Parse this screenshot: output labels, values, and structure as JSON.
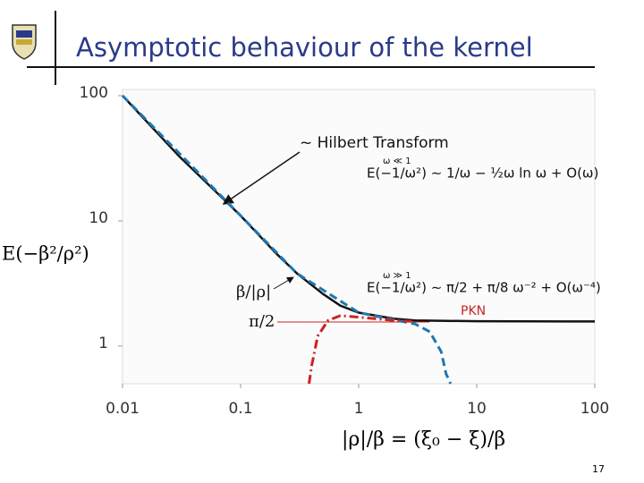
{
  "slide_title": "Asymptotic behaviour of the kernel",
  "page_number": "17",
  "chart_data": {
    "type": "line",
    "y_label": "E(−β²/ρ²)",
    "x_label": "|ρ|/β = (ξ₀ − ξ)/β",
    "xscale": "log",
    "yscale": "log",
    "xlim": [
      0.01,
      100
    ],
    "ylim": [
      0.5,
      100
    ],
    "xticks": [
      0.01,
      0.1,
      1,
      10,
      100
    ],
    "yticks": [
      1,
      10,
      100
    ],
    "series": [
      {
        "color": "#111111",
        "style": "solid",
        "x": [
          0.01,
          0.03,
          0.1,
          0.2,
          0.3,
          0.5,
          0.7,
          1,
          2,
          3,
          10,
          100
        ],
        "values": [
          100,
          33,
          11,
          5.5,
          3.8,
          2.6,
          2.1,
          1.85,
          1.65,
          1.6,
          1.58,
          1.571
        ]
      },
      {
        "color": "#1f77b4",
        "style": "dashed",
        "x": [
          0.01,
          0.1,
          0.3,
          1,
          2,
          3,
          4,
          5,
          5.5,
          6
        ],
        "values": [
          100,
          11,
          3.8,
          1.85,
          1.62,
          1.5,
          1.3,
          0.9,
          0.6,
          0.5
        ]
      },
      {
        "color": "#cc2222",
        "style": "dashdot",
        "x": [
          0.38,
          0.4,
          0.45,
          0.55,
          0.7,
          1,
          2,
          3
        ],
        "values": [
          0.5,
          0.7,
          1.2,
          1.6,
          1.75,
          1.7,
          1.6,
          1.57
        ]
      }
    ],
    "annotations": [
      "~ Hilbert Transform",
      "E(−1/ω²) ∼ 1/ω − ½ω ln ω + O(ω)",
      "ω ≪ 1",
      "E(−1/ω²) ∼ π/2 + π/8 ω⁻² + O(ω⁻⁴)",
      "ω ≫ 1",
      "PKN",
      "β/|ρ|",
      "π/2"
    ]
  }
}
